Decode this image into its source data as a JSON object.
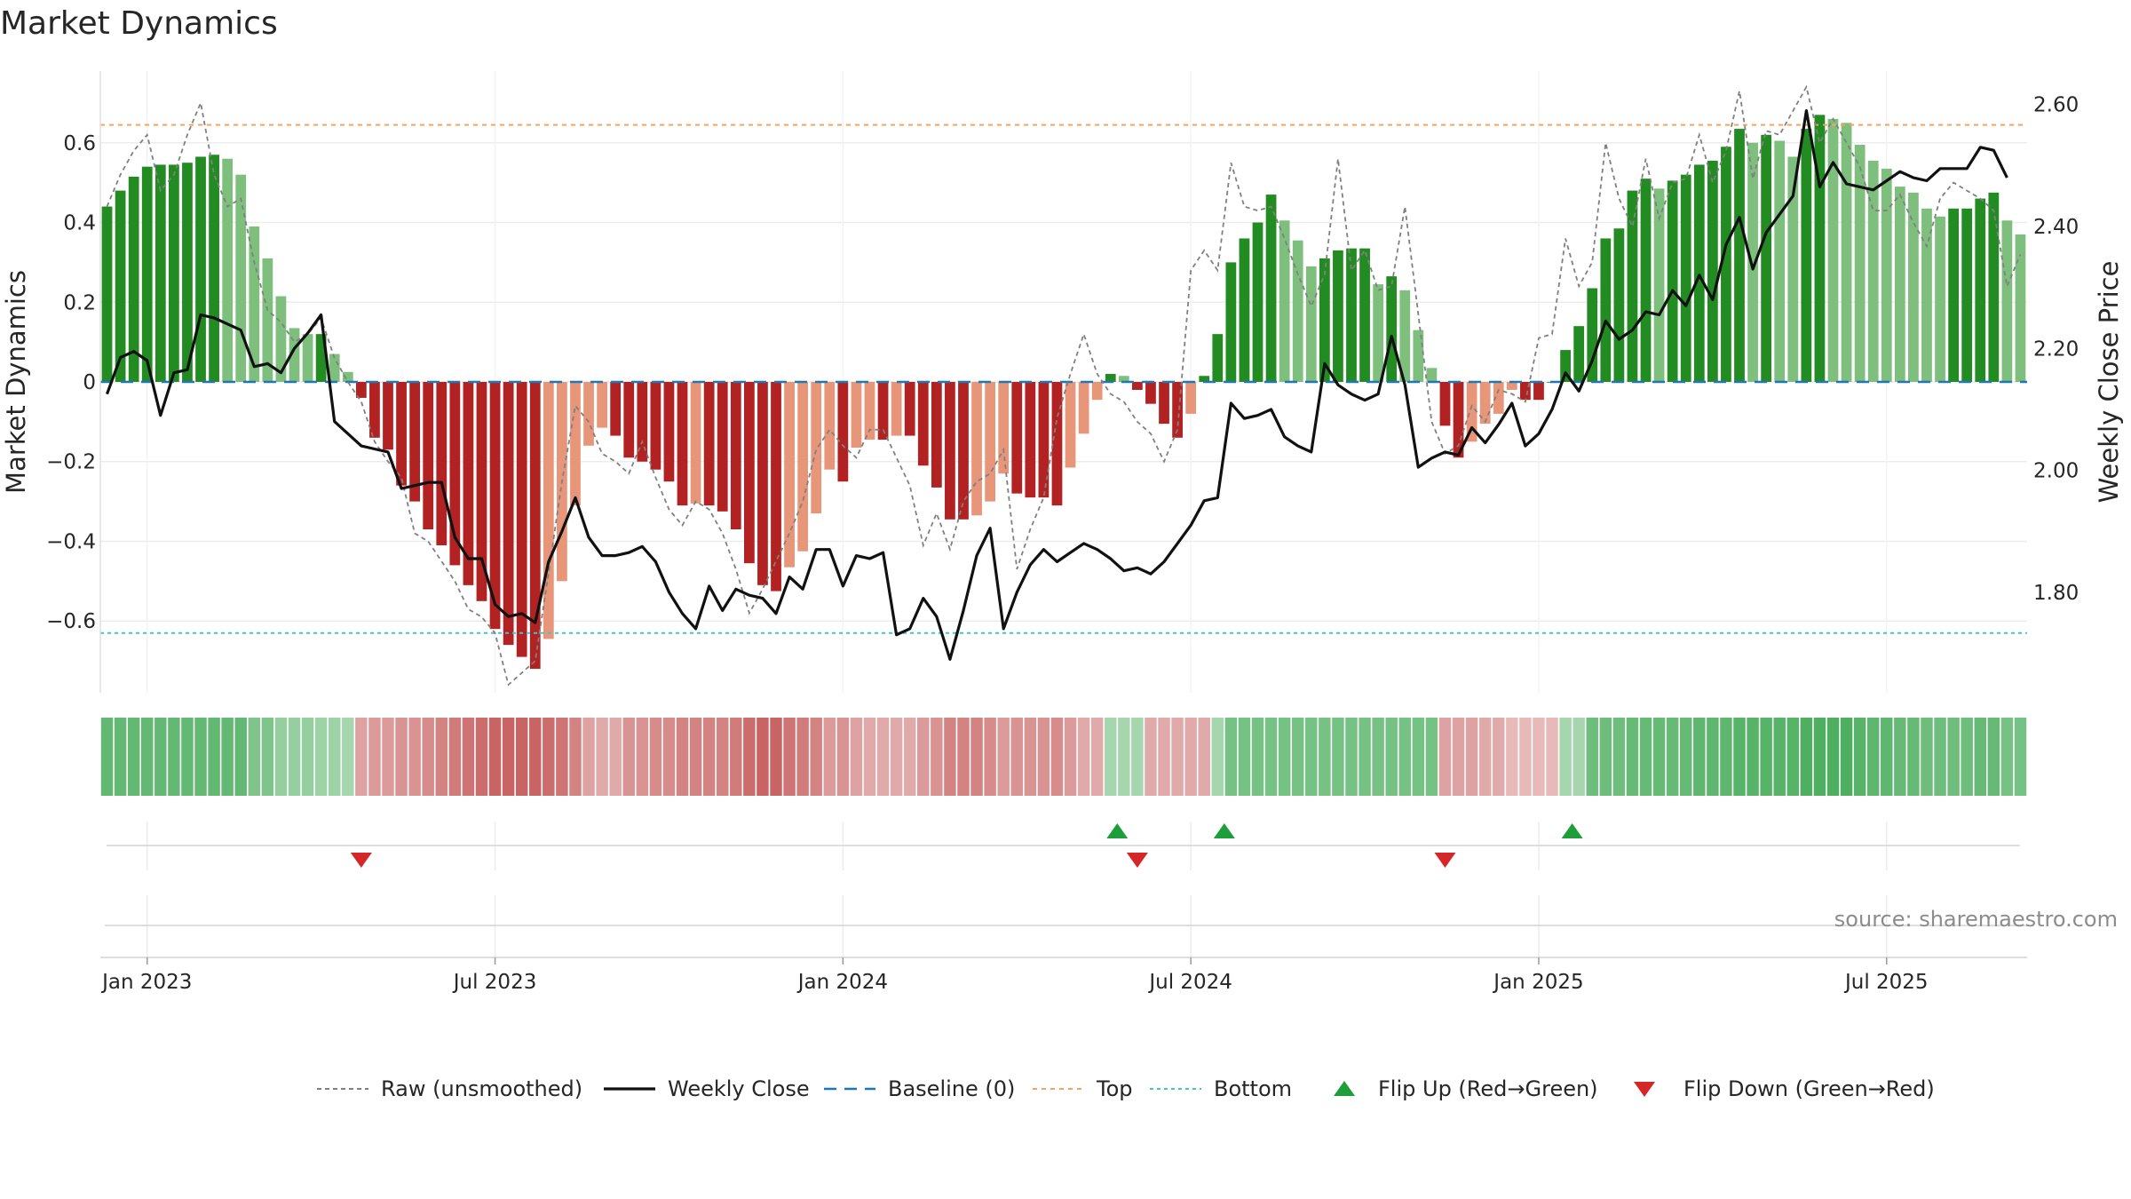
{
  "chart_data": {
    "type": "bar",
    "title": "Market Dynamics",
    "ylabel": "Market Dynamics",
    "y2label": "Weekly Close Price",
    "ylim": [
      -0.78,
      0.78
    ],
    "y2lim": [
      1.635,
      2.655
    ],
    "yticks": [
      {
        "v": 0.6,
        "label": "0.6"
      },
      {
        "v": 0.4,
        "label": "0.4"
      },
      {
        "v": 0.2,
        "label": "0.2"
      },
      {
        "v": 0,
        "label": "0"
      },
      {
        "v": -0.2,
        "label": "−0.2"
      },
      {
        "v": -0.4,
        "label": "−0.4"
      },
      {
        "v": -0.6,
        "label": "−0.6"
      }
    ],
    "y2ticks": [
      {
        "v": 2.6,
        "label": "2.60"
      },
      {
        "v": 2.4,
        "label": "2.40"
      },
      {
        "v": 2.2,
        "label": "2.20"
      },
      {
        "v": 2.0,
        "label": "2.00"
      },
      {
        "v": 1.8,
        "label": "1.80"
      }
    ],
    "xticks": [
      {
        "week": 3,
        "label": "Jan 2023"
      },
      {
        "week": 29,
        "label": "Jul 2023"
      },
      {
        "week": 55,
        "label": "Jan 2024"
      },
      {
        "week": 81,
        "label": "Jul 2024"
      },
      {
        "week": 107,
        "label": "Jan 2025"
      },
      {
        "week": 133,
        "label": "Jul 2025"
      }
    ],
    "top_level": 0.645,
    "bottom_level": -0.63,
    "baseline": 0,
    "first_week": "2022-12-19",
    "dynamics": [
      0.44,
      0.48,
      0.515,
      0.54,
      0.545,
      0.545,
      0.55,
      0.565,
      0.57,
      0.56,
      0.52,
      0.39,
      0.31,
      0.215,
      0.135,
      0.12,
      0.12,
      0.07,
      0.025,
      -0.04,
      -0.14,
      -0.17,
      -0.26,
      -0.3,
      -0.37,
      -0.41,
      -0.46,
      -0.51,
      -0.55,
      -0.62,
      -0.66,
      -0.69,
      -0.72,
      -0.645,
      -0.5,
      -0.31,
      -0.16,
      -0.115,
      -0.135,
      -0.19,
      -0.2,
      -0.22,
      -0.25,
      -0.31,
      -0.305,
      -0.31,
      -0.325,
      -0.37,
      -0.455,
      -0.51,
      -0.525,
      -0.465,
      -0.425,
      -0.33,
      -0.22,
      -0.25,
      -0.165,
      -0.145,
      -0.145,
      -0.135,
      -0.135,
      -0.21,
      -0.265,
      -0.345,
      -0.345,
      -0.335,
      -0.3,
      -0.23,
      -0.28,
      -0.29,
      -0.29,
      -0.31,
      -0.215,
      -0.13,
      -0.045,
      0.02,
      0.015,
      -0.02,
      -0.055,
      -0.105,
      -0.14,
      -0.08,
      0.015,
      0.12,
      0.3,
      0.36,
      0.4,
      0.47,
      0.405,
      0.355,
      0.29,
      0.31,
      0.33,
      0.335,
      0.335,
      0.245,
      0.265,
      0.23,
      0.13,
      0.035,
      -0.11,
      -0.19,
      -0.15,
      -0.105,
      -0.08,
      -0.02,
      -0.045,
      -0.045,
      0.0,
      0.08,
      0.14,
      0.235,
      0.36,
      0.385,
      0.48,
      0.51,
      0.485,
      0.505,
      0.52,
      0.545,
      0.555,
      0.59,
      0.635,
      0.6,
      0.62,
      0.605,
      0.565,
      0.635,
      0.67,
      0.66,
      0.65,
      0.595,
      0.555,
      0.535,
      0.49,
      0.475,
      0.435,
      0.415,
      0.435,
      0.435,
      0.46,
      0.475,
      0.405,
      0.37
    ],
    "raw": [
      0.44,
      0.52,
      0.58,
      0.62,
      0.48,
      0.52,
      0.62,
      0.7,
      0.52,
      0.44,
      0.46,
      0.3,
      0.18,
      0.15,
      0.1,
      0.12,
      0.16,
      0.06,
      0.0,
      -0.05,
      -0.15,
      -0.2,
      -0.24,
      -0.38,
      -0.4,
      -0.45,
      -0.5,
      -0.57,
      -0.59,
      -0.63,
      -0.76,
      -0.73,
      -0.7,
      -0.48,
      -0.25,
      -0.06,
      -0.1,
      -0.18,
      -0.2,
      -0.23,
      -0.15,
      -0.24,
      -0.32,
      -0.36,
      -0.3,
      -0.32,
      -0.38,
      -0.47,
      -0.58,
      -0.52,
      -0.45,
      -0.38,
      -0.3,
      -0.17,
      -0.12,
      -0.16,
      -0.19,
      -0.12,
      -0.12,
      -0.19,
      -0.26,
      -0.41,
      -0.33,
      -0.42,
      -0.3,
      -0.25,
      -0.23,
      -0.17,
      -0.47,
      -0.37,
      -0.29,
      -0.09,
      0.02,
      0.12,
      0.02,
      -0.03,
      -0.05,
      -0.1,
      -0.13,
      -0.2,
      -0.12,
      0.28,
      0.33,
      0.28,
      0.55,
      0.44,
      0.43,
      0.44,
      0.36,
      0.27,
      0.19,
      0.27,
      0.56,
      0.28,
      0.33,
      0.23,
      0.24,
      0.44,
      0.17,
      -0.1,
      -0.18,
      -0.16,
      -0.06,
      -0.1,
      -0.02,
      -0.03,
      -0.05,
      0.11,
      0.12,
      0.36,
      0.24,
      0.3,
      0.6,
      0.46,
      0.39,
      0.56,
      0.41,
      0.5,
      0.51,
      0.62,
      0.5,
      0.58,
      0.73,
      0.51,
      0.63,
      0.62,
      0.68,
      0.74,
      0.6,
      0.66,
      0.6,
      0.54,
      0.43,
      0.43,
      0.47,
      0.4,
      0.34,
      0.46,
      0.5,
      0.48,
      0.46,
      0.43,
      0.24,
      0.32
    ],
    "close": [
      2.125,
      2.185,
      2.195,
      2.18,
      2.09,
      2.16,
      2.165,
      2.255,
      2.25,
      2.24,
      2.23,
      2.17,
      2.175,
      2.16,
      2.2,
      2.225,
      2.255,
      2.08,
      2.06,
      2.04,
      2.035,
      2.03,
      1.97,
      1.975,
      1.98,
      1.98,
      1.89,
      1.855,
      1.855,
      1.78,
      1.76,
      1.765,
      1.75,
      1.85,
      1.9,
      1.955,
      1.89,
      1.86,
      1.86,
      1.865,
      1.875,
      1.85,
      1.8,
      1.765,
      1.74,
      1.81,
      1.77,
      1.805,
      1.795,
      1.79,
      1.765,
      1.825,
      1.805,
      1.87,
      1.87,
      1.81,
      1.86,
      1.855,
      1.865,
      1.73,
      1.74,
      1.79,
      1.76,
      1.69,
      1.77,
      1.86,
      1.905,
      1.74,
      1.8,
      1.845,
      1.87,
      1.85,
      1.865,
      1.88,
      1.87,
      1.855,
      1.835,
      1.84,
      1.83,
      1.85,
      1.88,
      1.91,
      1.95,
      1.955,
      2.11,
      2.085,
      2.09,
      2.1,
      2.055,
      2.04,
      2.03,
      2.175,
      2.14,
      2.125,
      2.115,
      2.125,
      2.22,
      2.14,
      2.005,
      2.02,
      2.03,
      2.025,
      2.07,
      2.045,
      2.075,
      2.11,
      2.04,
      2.06,
      2.1,
      2.16,
      2.13,
      2.18,
      2.245,
      2.215,
      2.23,
      2.26,
      2.255,
      2.295,
      2.27,
      2.32,
      2.28,
      2.37,
      2.415,
      2.33,
      2.39,
      2.42,
      2.45,
      2.59,
      2.465,
      2.505,
      2.47,
      2.465,
      2.46,
      2.475,
      2.49,
      2.48,
      2.475,
      2.495,
      2.495,
      2.495,
      2.53,
      2.525,
      2.48
    ],
    "signal_cells": [
      0.62,
      0.62,
      0.62,
      0.62,
      0.62,
      0.62,
      0.62,
      0.62,
      0.62,
      0.62,
      0.62,
      0.45,
      0.45,
      0.3,
      0.3,
      0.3,
      0.25,
      0.25,
      0.2,
      -0.35,
      -0.4,
      -0.4,
      -0.45,
      -0.45,
      -0.5,
      -0.55,
      -0.6,
      -0.65,
      -0.7,
      -0.75,
      -0.75,
      -0.75,
      -0.75,
      -0.7,
      -0.65,
      -0.55,
      -0.35,
      -0.3,
      -0.3,
      -0.45,
      -0.45,
      -0.5,
      -0.5,
      -0.55,
      -0.55,
      -0.55,
      -0.55,
      -0.6,
      -0.7,
      -0.75,
      -0.75,
      -0.65,
      -0.6,
      -0.55,
      -0.4,
      -0.45,
      -0.35,
      -0.3,
      -0.3,
      -0.3,
      -0.3,
      -0.4,
      -0.45,
      -0.55,
      -0.55,
      -0.55,
      -0.5,
      -0.4,
      -0.45,
      -0.45,
      -0.45,
      -0.5,
      -0.4,
      -0.3,
      -0.3,
      0.2,
      0.2,
      0.2,
      -0.3,
      -0.3,
      -0.3,
      -0.3,
      -0.3,
      0.2,
      0.5,
      0.5,
      0.5,
      0.5,
      0.5,
      0.5,
      0.5,
      0.5,
      0.5,
      0.5,
      0.5,
      0.5,
      0.5,
      0.5,
      0.5,
      0.5,
      -0.35,
      -0.35,
      -0.35,
      -0.3,
      -0.3,
      -0.2,
      -0.2,
      -0.2,
      -0.2,
      0.2,
      0.2,
      0.55,
      0.55,
      0.55,
      0.6,
      0.6,
      0.6,
      0.6,
      0.6,
      0.65,
      0.65,
      0.65,
      0.7,
      0.7,
      0.7,
      0.7,
      0.7,
      0.75,
      0.75,
      0.75,
      0.75,
      0.7,
      0.65,
      0.65,
      0.6,
      0.6,
      0.55,
      0.55,
      0.55,
      0.55,
      0.6,
      0.6,
      0.5,
      0.5
    ],
    "flips_up_weeks": [
      75.5,
      83.5,
      109.5
    ],
    "flips_down_weeks": [
      19,
      77,
      100
    ],
    "legend": [
      "Raw (unsmoothed)",
      "Weekly Close",
      "Baseline (0)",
      "Top",
      "Bottom",
      "Flip Up (Red→Green)",
      "Flip Down (Green→Red)"
    ],
    "source": "source: sharemaestro.com",
    "grid": true,
    "legend_position": "bottom-center"
  },
  "colors": {
    "green_strong": "#228b22",
    "green_light": "#7ebf7e",
    "red_strong": "#b22222",
    "red_light": "#e8967a",
    "close_line": "#111111",
    "raw_line": "#808080",
    "baseline": "#1f77b4",
    "top": "#f4a460",
    "bottom": "#40c4d0",
    "flip_up": "#1e9e3a",
    "flip_down": "#d62728"
  }
}
